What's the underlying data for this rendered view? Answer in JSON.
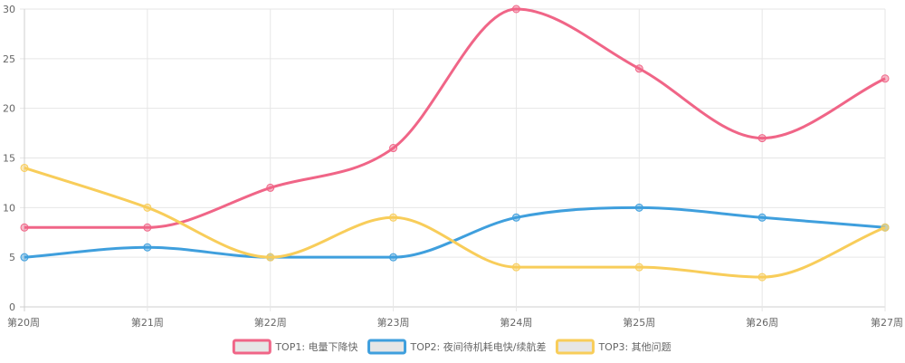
{
  "chart_data": {
    "type": "line",
    "title": "",
    "xlabel": "",
    "ylabel": "",
    "categories": [
      "第20周",
      "第21周",
      "第22周",
      "第23周",
      "第24周",
      "第25周",
      "第26周",
      "第27周"
    ],
    "ylim": [
      0,
      30
    ],
    "yticks": [
      0,
      5,
      10,
      15,
      20,
      25,
      30
    ],
    "grid": true,
    "legend_position": "bottom",
    "series": [
      {
        "name": "TOP1: 电量下降快",
        "color": "#f06587",
        "values": [
          8,
          8,
          12,
          16,
          30,
          24,
          17,
          23
        ]
      },
      {
        "name": "TOP2: 夜间待机耗电快/续航差",
        "color": "#3f9fdd",
        "values": [
          5,
          6,
          5,
          5,
          9,
          10,
          9,
          8
        ]
      },
      {
        "name": "TOP3: 其他问题",
        "color": "#f8cd5a",
        "values": [
          14,
          10,
          5,
          9,
          4,
          4,
          3,
          8
        ]
      }
    ]
  }
}
